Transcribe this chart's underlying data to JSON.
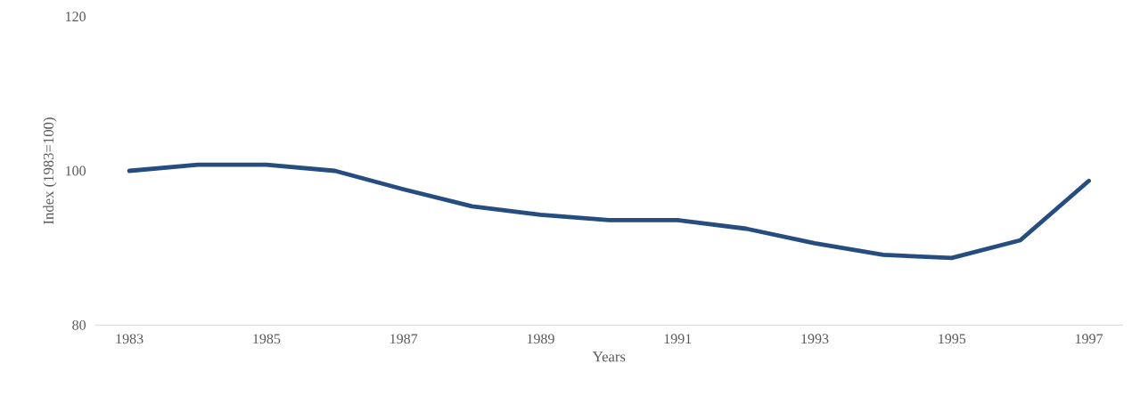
{
  "chart_data": {
    "type": "line",
    "xlabel": "Years",
    "ylabel": "Index (1983=100)",
    "categories": [
      "1983",
      null,
      "1985",
      null,
      "1987",
      null,
      "1989",
      null,
      "1991",
      null,
      "1993",
      null,
      "1995",
      null,
      "1997"
    ],
    "series": [
      {
        "color": "#264d7f",
        "values": [
          100,
          100.8,
          100.8,
          100,
          97.6,
          95.4,
          94.3,
          93.6,
          93.6,
          92.5,
          90.6,
          89.1,
          88.7,
          91.0,
          98.7
        ]
      }
    ],
    "ylim": [
      80,
      120
    ],
    "yticks": [
      80,
      100,
      120
    ]
  }
}
